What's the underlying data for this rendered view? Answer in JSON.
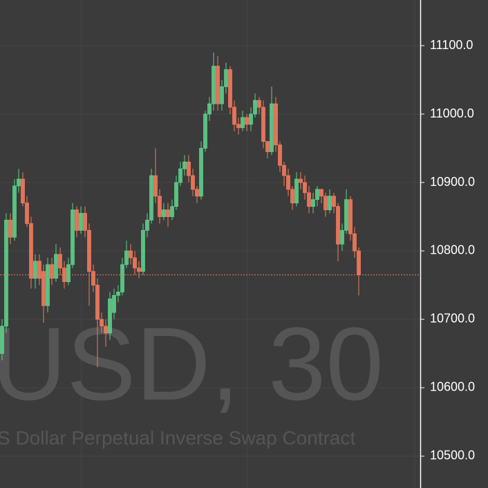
{
  "chart_data": {
    "type": "candlestick",
    "watermark_symbol": "USD, 30",
    "watermark_description": "S Dollar Perpetual Inverse Swap Contract",
    "up_color": "#5fd08a",
    "down_color": "#f47b5e",
    "ylim": [
      10453.5,
      11166.7
    ],
    "yticks": [
      {
        "value": 10500,
        "label": "10500.0"
      },
      {
        "value": 10600,
        "label": "10600.0"
      },
      {
        "value": 10700,
        "label": "10700.0"
      },
      {
        "value": 10800,
        "label": "10800.0"
      },
      {
        "value": 10900,
        "label": "10900.0"
      },
      {
        "value": 11000,
        "label": "11000.0"
      },
      {
        "value": 11100,
        "label": "11100.0"
      }
    ],
    "grid": true,
    "open": [
      10650,
      10690,
      10845,
      10820,
      10895,
      10905,
      10870,
      10840,
      10760,
      10785,
      10770,
      10720,
      10780,
      10760,
      10795,
      10775,
      10755,
      10780,
      10860,
      10830,
      10855,
      10830,
      10770,
      10750,
      10700,
      10690,
      10680,
      10710,
      10735,
      10740,
      10780,
      10800,
      10790,
      10775,
      10770,
      10830,
      10845,
      10910,
      10880,
      10850,
      10860,
      10850,
      10865,
      10900,
      10920,
      10930,
      10910,
      10890,
      10880,
      10950,
      11000,
      11015,
      11070,
      11015,
      11040,
      11065,
      11010,
      10985,
      10980,
      10995,
      10985,
      11000,
      11020,
      11010,
      10960,
      10945,
      11015,
      10955,
      10925,
      10910,
      10890,
      10870,
      10905,
      10900,
      10885,
      10865,
      10875,
      10890,
      10880,
      10860,
      10880,
      10865,
      10810,
      10830,
      10875,
      10825,
      10800
    ],
    "high": [
      10700,
      10855,
      10855,
      10905,
      10920,
      10915,
      10880,
      10850,
      10795,
      10795,
      10780,
      10790,
      10790,
      10810,
      10805,
      10785,
      10790,
      10870,
      10865,
      10865,
      10865,
      10840,
      10780,
      10760,
      10710,
      10700,
      10740,
      10745,
      10750,
      10790,
      10815,
      10810,
      10800,
      10785,
      10840,
      10855,
      10920,
      10950,
      10890,
      10870,
      10870,
      10875,
      10910,
      10930,
      10940,
      10940,
      10920,
      10895,
      10960,
      11005,
      11025,
      11090,
      11085,
      11050,
      11075,
      11070,
      11020,
      10995,
      11005,
      11000,
      11010,
      11030,
      11025,
      11020,
      10960,
      11040,
      11025,
      10960,
      10930,
      10920,
      10895,
      10915,
      10915,
      10910,
      10895,
      10885,
      10895,
      10890,
      10885,
      10890,
      10885,
      10870,
      10840,
      10890,
      10880,
      10835,
      10805
    ],
    "low": [
      10640,
      10680,
      10810,
      10815,
      10885,
      10865,
      10835,
      10745,
      10745,
      10750,
      10695,
      10710,
      10750,
      10755,
      10765,
      10745,
      10750,
      10775,
      10820,
      10825,
      10820,
      10720,
      10740,
      10630,
      10680,
      10660,
      10670,
      10700,
      10725,
      10735,
      10775,
      10780,
      10765,
      10760,
      10765,
      10820,
      10840,
      10870,
      10840,
      10845,
      10835,
      10845,
      10860,
      10895,
      10910,
      10900,
      10880,
      10870,
      10875,
      10945,
      10990,
      11005,
      11005,
      11005,
      11030,
      11000,
      10975,
      10970,
      10975,
      10975,
      10975,
      10995,
      11000,
      10950,
      10935,
      10940,
      10945,
      10915,
      10895,
      10880,
      10860,
      10865,
      10890,
      10875,
      10855,
      10855,
      10865,
      10870,
      10850,
      10855,
      10855,
      10785,
      10800,
      10825,
      10815,
      10790,
      10735
    ],
    "close": [
      10690,
      10845,
      10820,
      10895,
      10905,
      10870,
      10840,
      10760,
      10785,
      10760,
      10720,
      10780,
      10760,
      10795,
      10775,
      10755,
      10780,
      10860,
      10830,
      10855,
      10830,
      10770,
      10750,
      10700,
      10690,
      10680,
      10730,
      10735,
      10740,
      10780,
      10800,
      10790,
      10775,
      10770,
      10830,
      10845,
      10910,
      10880,
      10850,
      10860,
      10850,
      10865,
      10900,
      10920,
      10930,
      10910,
      10890,
      10880,
      10950,
      11000,
      11015,
      11070,
      11015,
      11040,
      11065,
      11010,
      10985,
      10980,
      10995,
      10985,
      11000,
      11020,
      11010,
      10960,
      10945,
      11015,
      10955,
      10925,
      10910,
      10890,
      10870,
      10905,
      10900,
      10885,
      10865,
      10875,
      10890,
      10880,
      10860,
      10880,
      10865,
      10810,
      10830,
      10875,
      10825,
      10800,
      10765
    ]
  }
}
